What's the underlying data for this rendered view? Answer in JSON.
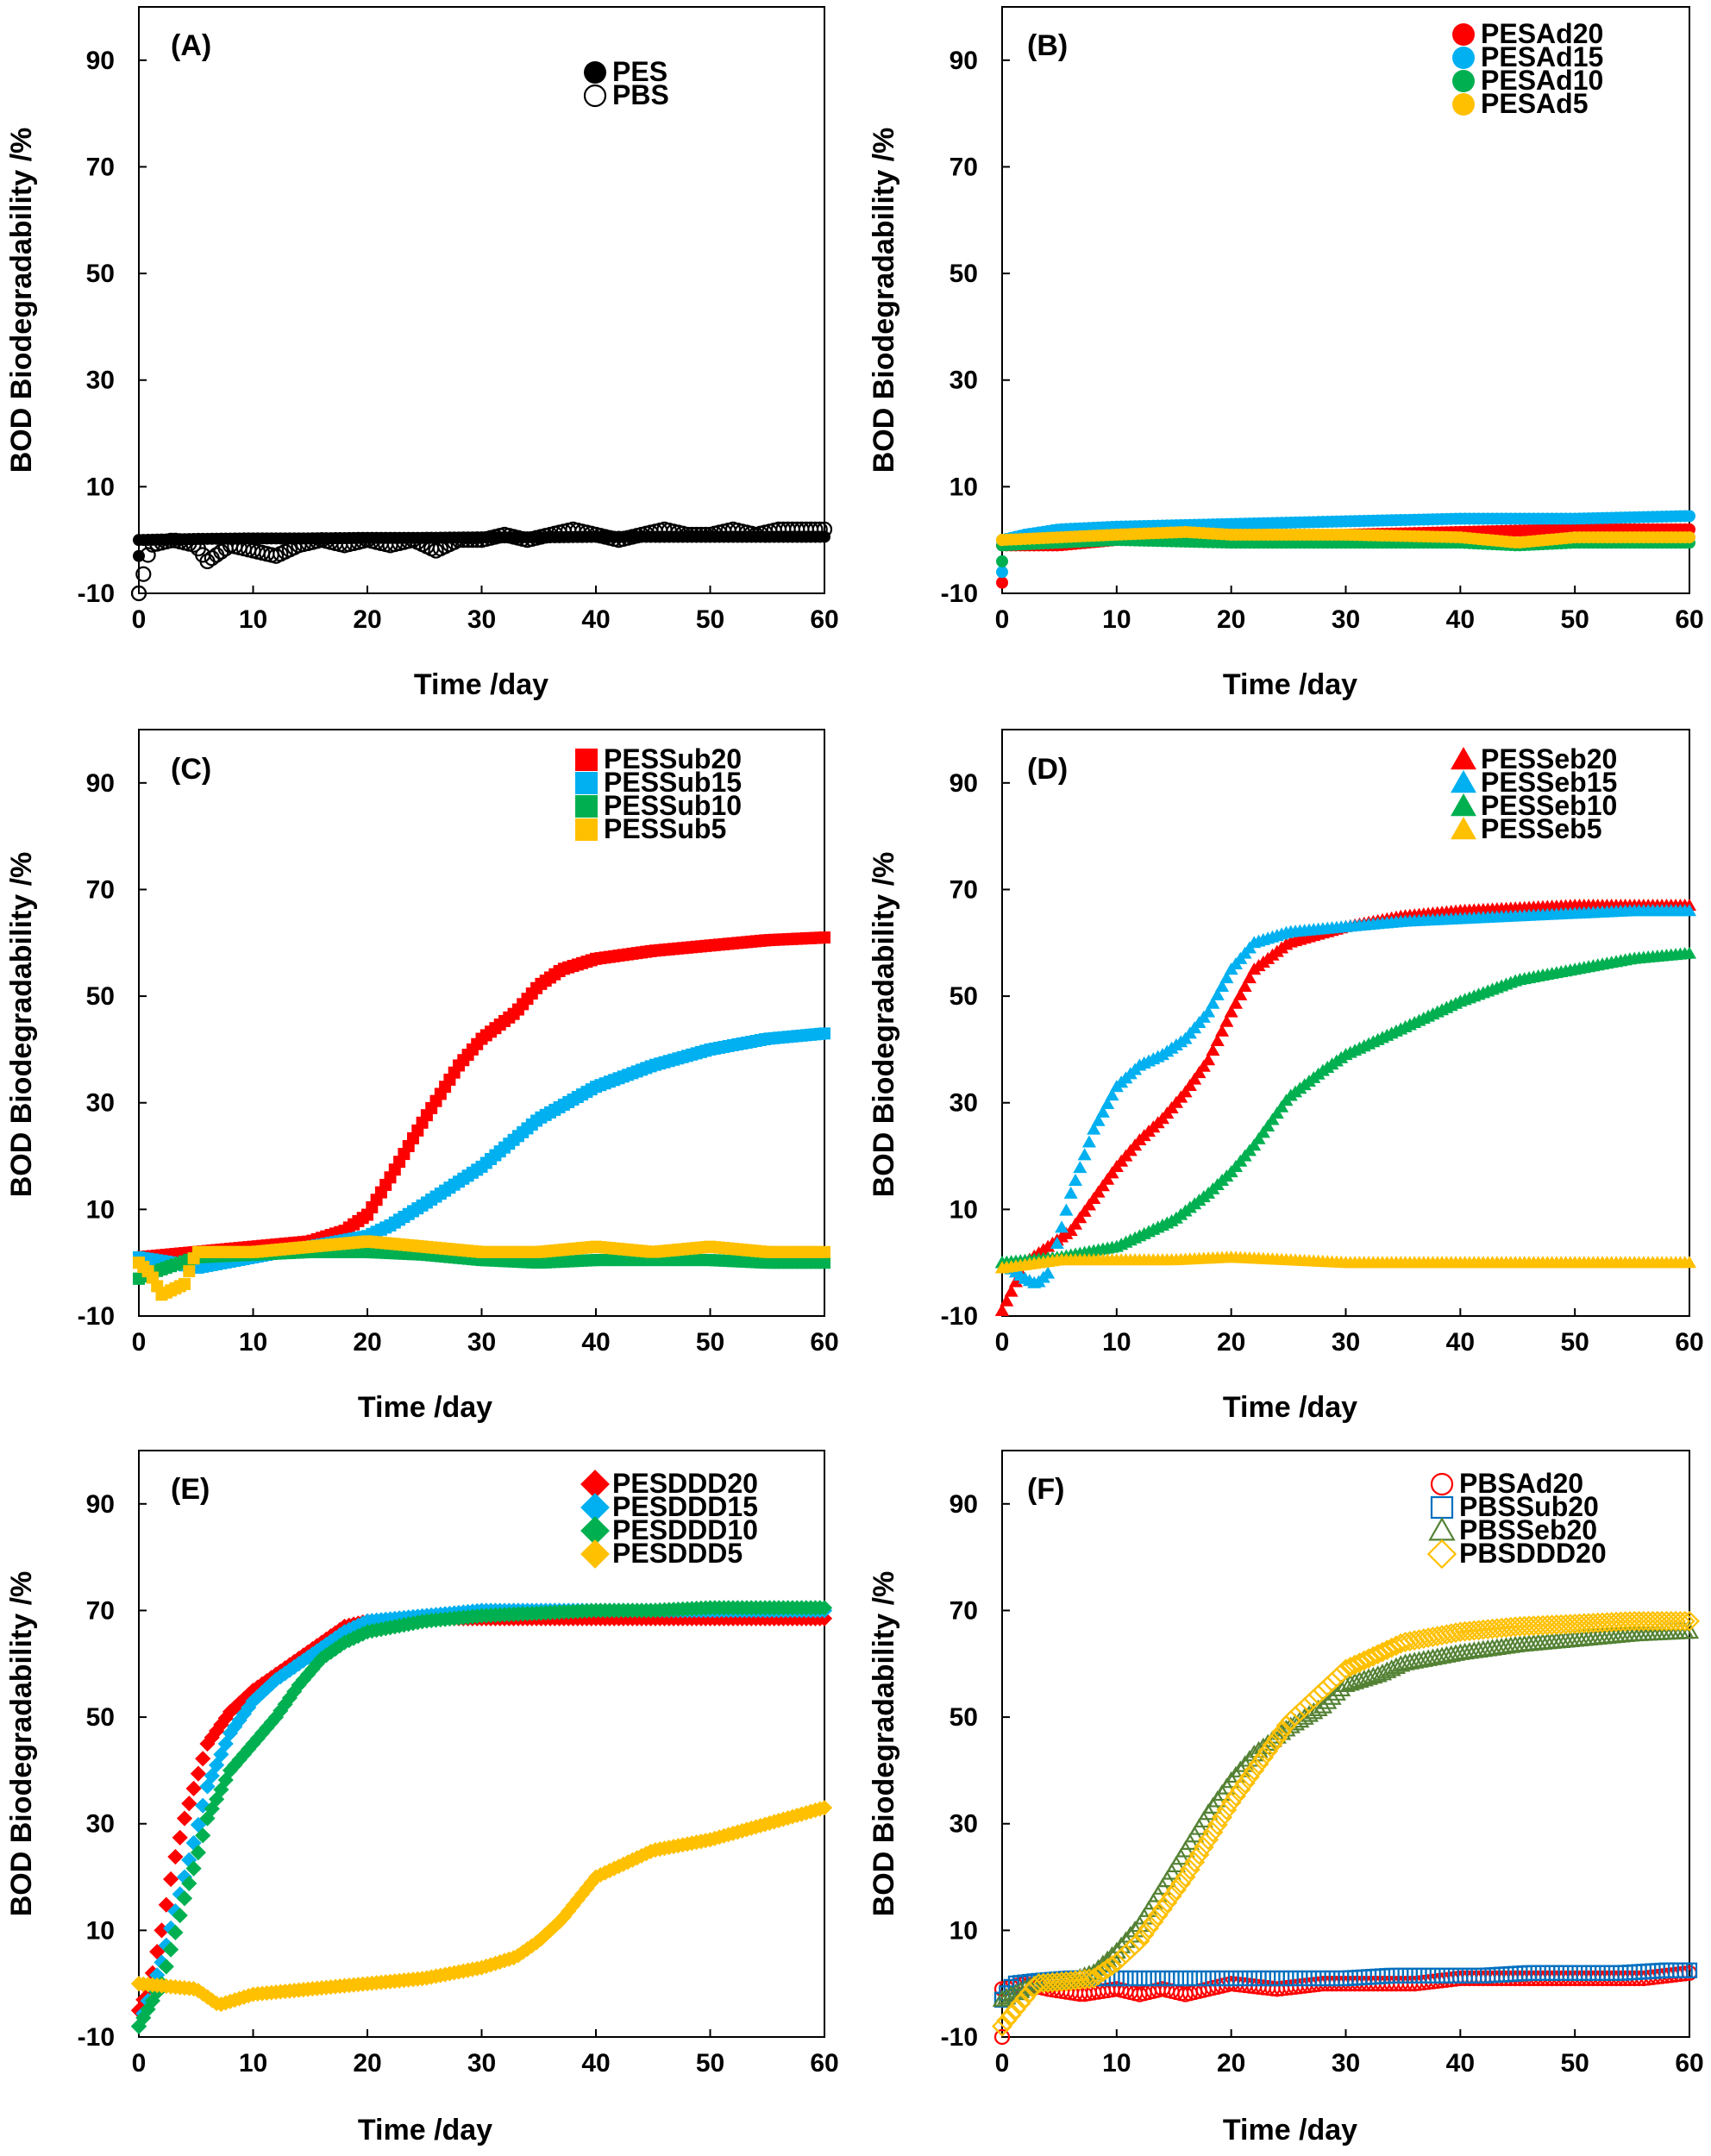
{
  "figure": {
    "x_label": "Time /day",
    "y_label": "BOD Biodegradability /%"
  },
  "chart_data": [
    {
      "id": "A",
      "label": "(A)",
      "type": "scatter",
      "x_ticks": [
        "0",
        "10",
        "20",
        "30",
        "40",
        "50",
        "60"
      ],
      "y_ticks": [
        "-10",
        "10",
        "30",
        "50",
        "70",
        "90"
      ],
      "xlim": [
        0,
        60
      ],
      "ylim": [
        -10,
        100
      ],
      "series": [
        {
          "name": "PES",
          "color": "#000000",
          "marker": "circle",
          "filled": true,
          "x": [
            0,
            0,
            5,
            10,
            15,
            20,
            25,
            30,
            35,
            40,
            45,
            50,
            55,
            60
          ],
          "y": [
            -3,
            0,
            0.2,
            0.3,
            0.3,
            0.4,
            0.4,
            0.5,
            0.5,
            0.6,
            0.6,
            0.6,
            0.6,
            0.6
          ]
        },
        {
          "name": "PBS",
          "color": "#000000",
          "marker": "circle",
          "filled": false,
          "x": [
            0,
            1,
            3,
            5,
            6,
            8,
            10,
            12,
            14,
            16,
            18,
            20,
            22,
            24,
            26,
            28,
            30,
            32,
            34,
            36,
            38,
            40,
            42,
            44,
            46,
            48,
            50,
            52,
            54,
            56,
            58,
            60
          ],
          "y": [
            -10,
            -1,
            0,
            -1,
            -4,
            -1,
            -2,
            -3,
            -1,
            0,
            -1,
            0,
            -1,
            0,
            -2,
            0,
            0,
            1,
            0,
            1,
            2,
            1,
            0,
            1,
            2,
            1,
            1,
            2,
            1,
            2,
            2,
            2
          ]
        }
      ]
    },
    {
      "id": "B",
      "label": "(B)",
      "type": "scatter",
      "x_ticks": [
        "0",
        "10",
        "20",
        "30",
        "40",
        "50",
        "60"
      ],
      "y_ticks": [
        "-10",
        "10",
        "30",
        "50",
        "70",
        "90"
      ],
      "xlim": [
        0,
        60
      ],
      "ylim": [
        -10,
        100
      ],
      "series": [
        {
          "name": "PESAd20",
          "color": "#ff0000",
          "marker": "circle",
          "filled": true,
          "x": [
            0,
            0,
            5,
            10,
            20,
            30,
            40,
            50,
            60
          ],
          "y": [
            -8,
            -1,
            -1,
            0,
            0.5,
            1,
            1.5,
            2,
            2
          ]
        },
        {
          "name": "PESAd15",
          "color": "#00b0f0",
          "marker": "circle",
          "filled": true,
          "x": [
            0,
            0,
            2,
            5,
            10,
            20,
            30,
            40,
            50,
            60
          ],
          "y": [
            -6,
            0,
            1,
            2,
            2.5,
            3,
            3.5,
            4,
            4,
            4.5
          ]
        },
        {
          "name": "PESAd10",
          "color": "#00b050",
          "marker": "circle",
          "filled": true,
          "x": [
            0,
            0,
            10,
            20,
            30,
            40,
            45,
            50,
            60
          ],
          "y": [
            -4,
            -1,
            0,
            -0.5,
            -0.5,
            -0.5,
            -1,
            -0.5,
            -0.5
          ]
        },
        {
          "name": "PESAd5",
          "color": "#ffc000",
          "marker": "circle",
          "filled": true,
          "x": [
            0,
            5,
            10,
            16,
            20,
            30,
            40,
            45,
            50,
            60
          ],
          "y": [
            0,
            0.5,
            1,
            1.5,
            1,
            1,
            0.5,
            -0.5,
            0.5,
            0.5
          ]
        }
      ]
    },
    {
      "id": "C",
      "label": "(C)",
      "type": "scatter",
      "x_ticks": [
        "0",
        "10",
        "20",
        "30",
        "40",
        "50",
        "60"
      ],
      "y_ticks": [
        "-10",
        "10",
        "30",
        "50",
        "70",
        "90"
      ],
      "xlim": [
        0,
        60
      ],
      "ylim": [
        -10,
        100
      ],
      "series": [
        {
          "name": "PESSub20",
          "color": "#ff0000",
          "marker": "square",
          "filled": true,
          "x": [
            0,
            5,
            10,
            15,
            18,
            20,
            22,
            25,
            28,
            30,
            33,
            35,
            37,
            40,
            45,
            50,
            55,
            60
          ],
          "y": [
            1,
            2,
            3,
            4,
            6,
            9,
            16,
            27,
            37,
            42,
            47,
            52,
            55,
            57,
            58.5,
            59.5,
            60.5,
            61
          ]
        },
        {
          "name": "PESSub15",
          "color": "#00b0f0",
          "marker": "square",
          "filled": true,
          "x": [
            0,
            3,
            5,
            10,
            15,
            20,
            22,
            25,
            30,
            35,
            40,
            45,
            50,
            55,
            60
          ],
          "y": [
            1,
            0,
            -1,
            1,
            3,
            5,
            7,
            11,
            18,
            27,
            33,
            37,
            40,
            42,
            43
          ]
        },
        {
          "name": "PESSub10",
          "color": "#00b050",
          "marker": "square",
          "filled": true,
          "x": [
            0,
            1,
            5,
            10,
            15,
            20,
            25,
            30,
            35,
            40,
            45,
            50,
            55,
            60
          ],
          "y": [
            -3,
            -2,
            1,
            1.5,
            2,
            2,
            1.5,
            0.5,
            0,
            0.5,
            0.5,
            0.5,
            0,
            0
          ]
        },
        {
          "name": "PESSub5",
          "color": "#ffc000",
          "marker": "square",
          "filled": true,
          "x": [
            0,
            1,
            2,
            3,
            4,
            5,
            10,
            15,
            20,
            25,
            30,
            35,
            40,
            45,
            50,
            55,
            60
          ],
          "y": [
            0,
            -2,
            -6,
            -5,
            -4,
            2,
            2,
            3,
            4,
            3,
            2,
            2,
            3,
            2,
            3,
            2,
            2
          ]
        }
      ]
    },
    {
      "id": "D",
      "label": "(D)",
      "type": "scatter",
      "x_ticks": [
        "0",
        "10",
        "20",
        "30",
        "40",
        "50",
        "60"
      ],
      "y_ticks": [
        "-10",
        "10",
        "30",
        "50",
        "70",
        "90"
      ],
      "xlim": [
        0,
        60
      ],
      "ylim": [
        -10,
        100
      ],
      "series": [
        {
          "name": "PESSeb20",
          "color": "#ff0000",
          "marker": "triangle",
          "filled": true,
          "x": [
            0,
            2,
            4,
            6,
            8,
            10,
            12,
            14,
            16,
            18,
            20,
            22,
            25,
            30,
            35,
            40,
            45,
            50,
            55,
            60
          ],
          "y": [
            -9,
            0,
            3,
            6,
            12,
            18,
            23,
            27,
            32,
            38,
            47,
            55,
            60,
            63,
            65,
            66,
            66.5,
            67,
            67,
            67
          ]
        },
        {
          "name": "PESSeb15",
          "color": "#00b0f0",
          "marker": "triangle",
          "filled": true,
          "x": [
            0,
            2,
            3,
            4,
            5,
            6,
            8,
            10,
            12,
            14,
            16,
            18,
            20,
            22,
            25,
            30,
            35,
            40,
            45,
            50,
            55,
            60
          ],
          "y": [
            0,
            -3,
            -4,
            -2,
            5,
            13,
            25,
            33,
            37,
            39,
            42,
            47,
            55,
            60,
            62,
            63,
            64,
            64.5,
            65,
            65.5,
            66,
            66
          ]
        },
        {
          "name": "PESSeb10",
          "color": "#00b050",
          "marker": "triangle",
          "filled": true,
          "x": [
            0,
            5,
            10,
            15,
            18,
            20,
            22,
            25,
            28,
            30,
            35,
            40,
            45,
            50,
            55,
            60
          ],
          "y": [
            0,
            1,
            3,
            8,
            13,
            17,
            22,
            31,
            36,
            39,
            44,
            49,
            53,
            55,
            57,
            58
          ]
        },
        {
          "name": "PESSeb5",
          "color": "#ffc000",
          "marker": "triangle",
          "filled": true,
          "x": [
            0,
            5,
            10,
            15,
            20,
            25,
            30,
            35,
            40,
            45,
            50,
            55,
            60
          ],
          "y": [
            -1,
            0.5,
            0.5,
            0.5,
            1,
            0.5,
            0,
            0,
            0,
            0,
            0,
            0,
            0
          ]
        }
      ]
    },
    {
      "id": "E",
      "label": "(E)",
      "type": "scatter",
      "x_ticks": [
        "0",
        "10",
        "20",
        "30",
        "40",
        "50",
        "60"
      ],
      "y_ticks": [
        "-10",
        "10",
        "30",
        "50",
        "70",
        "90"
      ],
      "xlim": [
        0,
        60
      ],
      "ylim": [
        -10,
        100
      ],
      "series": [
        {
          "name": "PESDDD20",
          "color": "#ff0000",
          "marker": "diamond",
          "filled": true,
          "x": [
            0,
            1,
            2,
            3,
            4,
            5,
            6,
            8,
            10,
            12,
            14,
            16,
            18,
            20,
            25,
            30,
            35,
            40,
            45,
            50,
            55,
            60
          ],
          "y": [
            -5,
            0,
            10,
            22,
            31,
            38,
            45,
            51,
            55,
            58,
            61,
            64,
            67,
            68,
            68.5,
            68.5,
            68.5,
            68.5,
            68.5,
            68.5,
            68.5,
            68.5
          ]
        },
        {
          "name": "PESDDD15",
          "color": "#00b0f0",
          "marker": "diamond",
          "filled": true,
          "x": [
            0,
            2,
            4,
            5,
            6,
            8,
            10,
            12,
            14,
            16,
            18,
            20,
            25,
            30,
            35,
            40,
            45,
            50,
            55,
            60
          ],
          "y": [
            -8,
            4,
            20,
            28,
            37,
            47,
            53,
            57,
            60,
            63,
            66,
            68,
            69,
            70,
            70,
            70,
            70,
            70,
            70,
            70
          ]
        },
        {
          "name": "PESDDD10",
          "color": "#00b050",
          "marker": "diamond",
          "filled": true,
          "x": [
            0,
            2,
            3,
            4,
            5,
            6,
            8,
            10,
            12,
            14,
            16,
            18,
            20,
            25,
            30,
            35,
            40,
            45,
            50,
            55,
            60
          ],
          "y": [
            -8,
            0,
            8,
            16,
            23,
            31,
            40,
            45,
            50,
            56,
            61,
            64,
            66,
            68,
            69,
            69.5,
            70,
            70,
            70.5,
            70.5,
            70.5
          ]
        },
        {
          "name": "PESDDD5",
          "color": "#ffc000",
          "marker": "diamond",
          "filled": true,
          "x": [
            0,
            5,
            7,
            10,
            15,
            20,
            25,
            30,
            33,
            35,
            37,
            40,
            42,
            45,
            50,
            55,
            60
          ],
          "y": [
            0,
            -1,
            -4,
            -2,
            -1,
            0,
            1,
            3,
            5,
            8,
            12,
            20,
            22,
            25,
            27,
            30,
            33
          ]
        }
      ]
    },
    {
      "id": "F",
      "label": "(F)",
      "type": "scatter",
      "x_ticks": [
        "0",
        "10",
        "20",
        "30",
        "40",
        "50",
        "60"
      ],
      "y_ticks": [
        "-10",
        "10",
        "30",
        "50",
        "70",
        "90"
      ],
      "xlim": [
        0,
        60
      ],
      "ylim": [
        -10,
        100
      ],
      "series": [
        {
          "name": "PBSAd20",
          "color": "#ff0000",
          "marker": "circle",
          "filled": false,
          "x": [
            0,
            0,
            2,
            4,
            7,
            10,
            12,
            14,
            16,
            18,
            20,
            24,
            28,
            32,
            36,
            40,
            44,
            48,
            52,
            56,
            60
          ],
          "y": [
            -10,
            -1,
            0,
            -1,
            -2,
            -1,
            -2,
            -1,
            -2,
            -1,
            0,
            -1,
            0,
            0,
            0,
            1,
            1,
            1,
            1,
            1,
            2
          ]
        },
        {
          "name": "PBSSub20",
          "color": "#0070c0",
          "marker": "square",
          "filled": false,
          "x": [
            0,
            1,
            3,
            6,
            10,
            14,
            18,
            22,
            26,
            30,
            34,
            38,
            42,
            46,
            50,
            54,
            58,
            60
          ],
          "y": [
            -3,
            0,
            0.5,
            1,
            1,
            1,
            1,
            1,
            1,
            1,
            1.5,
            1.5,
            1.5,
            2,
            2,
            2,
            2.5,
            2.5
          ]
        },
        {
          "name": "PBSSeb20",
          "color": "#548235",
          "marker": "triangle",
          "filled": false,
          "x": [
            0,
            3,
            6,
            8,
            10,
            12,
            14,
            16,
            18,
            20,
            22,
            25,
            28,
            30,
            33,
            35,
            40,
            45,
            50,
            55,
            60
          ],
          "y": [
            -3,
            0,
            0.5,
            2,
            6,
            11,
            18,
            25,
            32,
            38,
            43,
            48,
            52,
            56,
            58,
            60,
            62,
            63.5,
            64.5,
            65.5,
            66
          ]
        },
        {
          "name": "PBSDDD20",
          "color": "#ffc000",
          "marker": "diamond",
          "filled": false,
          "x": [
            0,
            3,
            6,
            8,
            10,
            12,
            14,
            16,
            18,
            20,
            22,
            25,
            28,
            30,
            33,
            35,
            40,
            45,
            50,
            55,
            60
          ],
          "y": [
            -8,
            0,
            0.5,
            1,
            4,
            8,
            14,
            20,
            27,
            34,
            40,
            49,
            55,
            59,
            62,
            64,
            66,
            67,
            67.5,
            68,
            68
          ]
        }
      ]
    }
  ]
}
